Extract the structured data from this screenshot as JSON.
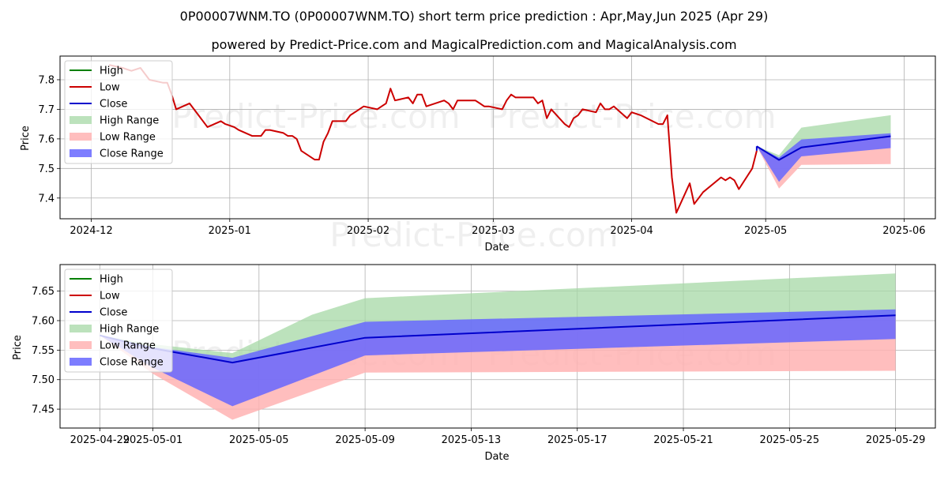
{
  "title": "0P00007WNM.TO (0P00007WNM.TO) short term price prediction : Apr,May,Jun 2025 (Apr 29)",
  "subtitle": "powered by Predict-Price.com and MagicalPrediction.com and MagicalAnalysis.com",
  "watermark": "Predict-Price.com",
  "colors": {
    "high": "#008000",
    "low": "#cc0000",
    "close": "#0000cc",
    "high_range": "#a6d8a6",
    "low_range": "#ffb3b3",
    "close_range": "#6666ff"
  },
  "chart_data": [
    {
      "type": "line",
      "xlabel": "Date",
      "ylabel": "Price",
      "xlim": [
        "2024-11-24",
        "2025-06-08"
      ],
      "ylim": [
        7.33,
        7.88
      ],
      "xticks": [
        {
          "date": "2024-12-01",
          "label": "2024-12"
        },
        {
          "date": "2025-01-01",
          "label": "2025-01"
        },
        {
          "date": "2025-02-01",
          "label": "2025-02"
        },
        {
          "date": "2025-03-01",
          "label": "2025-03"
        },
        {
          "date": "2025-04-01",
          "label": "2025-04"
        },
        {
          "date": "2025-05-01",
          "label": "2025-05"
        },
        {
          "date": "2025-06-01",
          "label": "2025-06"
        }
      ],
      "yticks": [
        7.4,
        7.5,
        7.6,
        7.7,
        7.8
      ],
      "grid": true,
      "legend": {
        "position": "top-left",
        "entries": [
          "High",
          "Low",
          "Close",
          "High Range",
          "Low Range",
          "Close Range"
        ]
      },
      "history_low": {
        "x": [
          "2024-12-05",
          "2024-12-08",
          "2024-12-10",
          "2024-12-12",
          "2024-12-14",
          "2024-12-17",
          "2024-12-18",
          "2024-12-19",
          "2024-12-20",
          "2024-12-23",
          "2024-12-24",
          "2024-12-27",
          "2024-12-30",
          "2024-12-31",
          "2025-01-02",
          "2025-01-03",
          "2025-01-06",
          "2025-01-07",
          "2025-01-08",
          "2025-01-09",
          "2025-01-10",
          "2025-01-13",
          "2025-01-14",
          "2025-01-15",
          "2025-01-16",
          "2025-01-17",
          "2025-01-20",
          "2025-01-21",
          "2025-01-22",
          "2025-01-23",
          "2025-01-24",
          "2025-01-27",
          "2025-01-28",
          "2025-01-29",
          "2025-01-30",
          "2025-01-31",
          "2025-02-03",
          "2025-02-04",
          "2025-02-05",
          "2025-02-06",
          "2025-02-07",
          "2025-02-10",
          "2025-02-11",
          "2025-02-12",
          "2025-02-13",
          "2025-02-14",
          "2025-02-18",
          "2025-02-19",
          "2025-02-20",
          "2025-02-21",
          "2025-02-24",
          "2025-02-25",
          "2025-02-26",
          "2025-02-27",
          "2025-02-28",
          "2025-03-03",
          "2025-03-04",
          "2025-03-05",
          "2025-03-06",
          "2025-03-07",
          "2025-03-10",
          "2025-03-11",
          "2025-03-12",
          "2025-03-13",
          "2025-03-14",
          "2025-03-17",
          "2025-03-18",
          "2025-03-19",
          "2025-03-20",
          "2025-03-21",
          "2025-03-24",
          "2025-03-25",
          "2025-03-26",
          "2025-03-27",
          "2025-03-28",
          "2025-03-31",
          "2025-04-01",
          "2025-04-03",
          "2025-04-07",
          "2025-04-08",
          "2025-04-09",
          "2025-04-10",
          "2025-04-11",
          "2025-04-14",
          "2025-04-15",
          "2025-04-16",
          "2025-04-17",
          "2025-04-21",
          "2025-04-22",
          "2025-04-23",
          "2025-04-24",
          "2025-04-25",
          "2025-04-28",
          "2025-04-29"
        ],
        "y": [
          7.85,
          7.84,
          7.83,
          7.84,
          7.8,
          7.79,
          7.79,
          7.75,
          7.7,
          7.72,
          7.7,
          7.64,
          7.66,
          7.65,
          7.64,
          7.63,
          7.61,
          7.61,
          7.61,
          7.63,
          7.63,
          7.62,
          7.61,
          7.61,
          7.6,
          7.56,
          7.53,
          7.53,
          7.59,
          7.62,
          7.66,
          7.66,
          7.68,
          7.69,
          7.7,
          7.71,
          7.7,
          7.71,
          7.72,
          7.77,
          7.73,
          7.74,
          7.72,
          7.75,
          7.75,
          7.71,
          7.73,
          7.72,
          7.7,
          7.73,
          7.73,
          7.73,
          7.72,
          7.71,
          7.71,
          7.7,
          7.73,
          7.75,
          7.74,
          7.74,
          7.74,
          7.72,
          7.73,
          7.67,
          7.7,
          7.65,
          7.64,
          7.67,
          7.68,
          7.7,
          7.69,
          7.72,
          7.7,
          7.7,
          7.71,
          7.67,
          7.69,
          7.68,
          7.65,
          7.65,
          7.68,
          7.47,
          7.35,
          7.45,
          7.38,
          7.4,
          7.42,
          7.47,
          7.46,
          7.47,
          7.46,
          7.43,
          7.5,
          7.56
        ]
      },
      "close_pred": {
        "x": [
          "2025-04-29",
          "2025-05-04",
          "2025-05-09",
          "2025-05-29"
        ],
        "y": [
          7.575,
          7.529,
          7.571,
          7.609
        ]
      },
      "high_range": {
        "x": [
          "2025-04-29",
          "2025-05-04",
          "2025-05-09",
          "2025-05-29"
        ],
        "upper": [
          7.575,
          7.545,
          7.638,
          7.68
        ],
        "lower": [
          7.575,
          7.529,
          7.571,
          7.609
        ]
      },
      "low_range": {
        "x": [
          "2025-04-29",
          "2025-05-04",
          "2025-05-09",
          "2025-05-29"
        ],
        "upper": [
          7.575,
          7.529,
          7.571,
          7.609
        ],
        "lower": [
          7.575,
          7.432,
          7.512,
          7.515
        ]
      },
      "close_range": {
        "x": [
          "2025-04-29",
          "2025-05-04",
          "2025-05-09",
          "2025-05-29"
        ],
        "upper": [
          7.575,
          7.537,
          7.598,
          7.619
        ],
        "lower": [
          7.575,
          7.455,
          7.541,
          7.569
        ]
      }
    },
    {
      "type": "line",
      "xlabel": "Date",
      "ylabel": "Price",
      "xlim": [
        "2025-04-27.5",
        "2025-05-30.5"
      ],
      "ylim": [
        7.418,
        7.695
      ],
      "xticks": [
        {
          "date": "2025-04-29",
          "label": "2025-04-29"
        },
        {
          "date": "2025-05-01",
          "label": "2025-05-01"
        },
        {
          "date": "2025-05-05",
          "label": "2025-05-05"
        },
        {
          "date": "2025-05-09",
          "label": "2025-05-09"
        },
        {
          "date": "2025-05-13",
          "label": "2025-05-13"
        },
        {
          "date": "2025-05-17",
          "label": "2025-05-17"
        },
        {
          "date": "2025-05-21",
          "label": "2025-05-21"
        },
        {
          "date": "2025-05-25",
          "label": "2025-05-25"
        },
        {
          "date": "2025-05-29",
          "label": "2025-05-29"
        }
      ],
      "yticks": [
        7.45,
        7.5,
        7.55,
        7.6,
        7.65
      ],
      "grid": true,
      "legend": {
        "position": "top-left",
        "entries": [
          "High",
          "Low",
          "Close",
          "High Range",
          "Low Range",
          "Close Range"
        ]
      },
      "close_pred": {
        "x": [
          "2025-04-29",
          "2025-05-01",
          "2025-05-04",
          "2025-05-09",
          "2025-05-29"
        ],
        "y": [
          7.575,
          7.553,
          7.529,
          7.571,
          7.609
        ]
      },
      "high_range": {
        "x": [
          "2025-04-29",
          "2025-05-01",
          "2025-05-04",
          "2025-05-07",
          "2025-05-09",
          "2025-05-29"
        ],
        "upper": [
          7.575,
          7.56,
          7.545,
          7.61,
          7.638,
          7.68
        ],
        "lower": [
          7.575,
          7.553,
          7.529,
          7.555,
          7.571,
          7.609
        ]
      },
      "low_range": {
        "x": [
          "2025-04-29",
          "2025-05-01",
          "2025-05-04",
          "2025-05-09",
          "2025-05-29"
        ],
        "upper": [
          7.575,
          7.553,
          7.529,
          7.571,
          7.609
        ],
        "lower": [
          7.575,
          7.51,
          7.432,
          7.512,
          7.515
        ]
      },
      "close_range": {
        "x": [
          "2025-04-29",
          "2025-05-01",
          "2025-05-04",
          "2025-05-09",
          "2025-05-29"
        ],
        "upper": [
          7.575,
          7.555,
          7.537,
          7.598,
          7.619
        ],
        "lower": [
          7.575,
          7.52,
          7.455,
          7.541,
          7.569
        ]
      }
    }
  ]
}
